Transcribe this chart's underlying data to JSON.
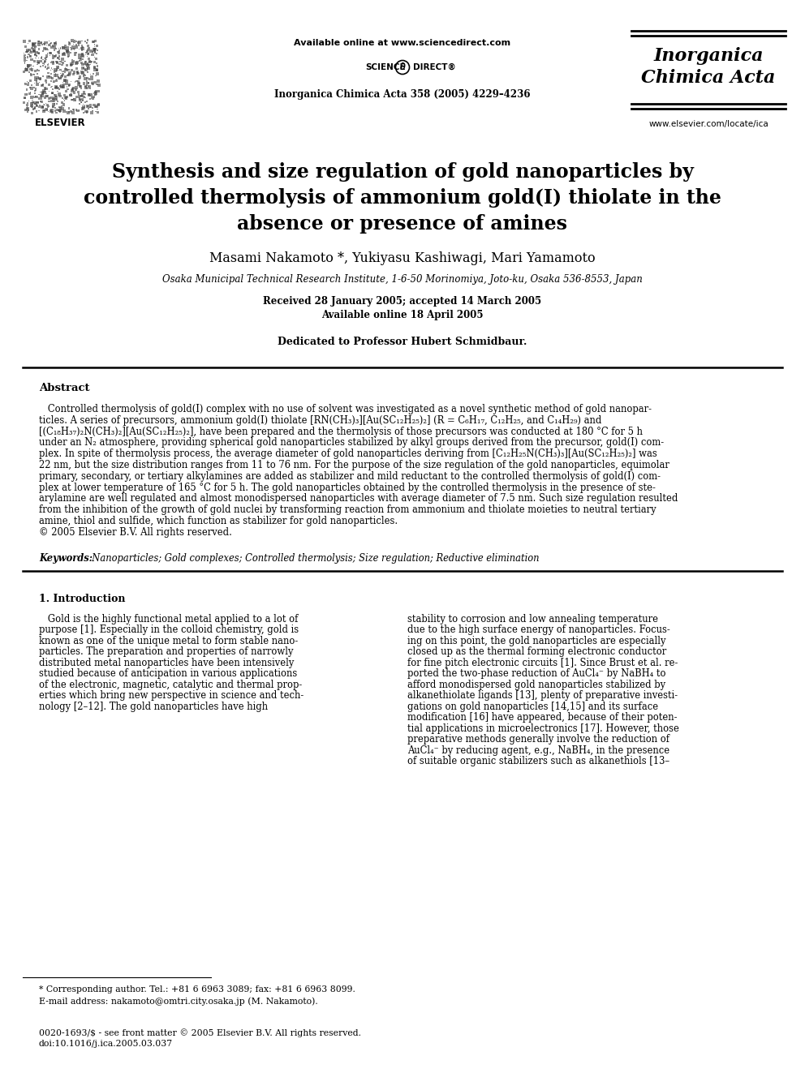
{
  "bg_color": "#ffffff",
  "available_online": "Available online at www.sciencedirect.com",
  "journal_ref": "Inorganica Chimica Acta 358 (2005) 4229–4236",
  "journal_name_line1": "Inorganica",
  "journal_name_line2": "Chimica Acta",
  "website": "www.elsevier.com/locate/ica",
  "title_lines": [
    "Synthesis and size regulation of gold nanoparticles by",
    "controlled thermolysis of ammonium gold(I) thiolate in the",
    "absence or presence of amines"
  ],
  "authors": "Masami Nakamoto *, Yukiyasu Kashiwagi, Mari Yamamoto",
  "affiliation": "Osaka Municipal Technical Research Institute, 1-6-50 Morinomiya, Joto-ku, Osaka 536-8553, Japan",
  "received": "Received 28 January 2005; accepted 14 March 2005",
  "available": "Available online 18 April 2005",
  "dedication": "Dedicated to Professor Hubert Schmidbaur.",
  "abstract_title": "Abstract",
  "abstract_lines": [
    "   Controlled thermolysis of gold(I) complex with no use of solvent was investigated as a novel synthetic method of gold nanopar-",
    "ticles. A series of precursors, ammonium gold(I) thiolate [RN(CH₃)₃][Au(SC₁₂H₂₅)₂] (R = C₆H₁₇, C₁₂H₂₅, and C₁₄H₂₉) and",
    "[(C₁₈H₃₇)₂N(CH₃)₂][Au(SC₁₂H₂₅)₂], have been prepared and the thermolysis of those precursors was conducted at 180 °C for 5 h",
    "under an N₂ atmosphere, providing spherical gold nanoparticles stabilized by alkyl groups derived from the precursor, gold(I) com-",
    "plex. In spite of thermolysis process, the average diameter of gold nanoparticles deriving from [C₁₂H₂₅N(CH₃)₃][Au(SC₁₂H₂₅)₂] was",
    "22 nm, but the size distribution ranges from 11 to 76 nm. For the purpose of the size regulation of the gold nanoparticles, equimolar",
    "primary, secondary, or tertiary alkylamines are added as stabilizer and mild reductant to the controlled thermolysis of gold(I) com-",
    "plex at lower temperature of 165 °C for 5 h. The gold nanoparticles obtained by the controlled thermolysis in the presence of ste-",
    "arylamine are well regulated and almost monodispersed nanoparticles with average diameter of 7.5 nm. Such size regulation resulted",
    "from the inhibition of the growth of gold nuclei by transforming reaction from ammonium and thiolate moieties to neutral tertiary",
    "amine, thiol and sulfide, which function as stabilizer for gold nanoparticles.",
    "© 2005 Elsevier B.V. All rights reserved."
  ],
  "keywords_bold": "Keywords:",
  "keywords_text": "  Nanoparticles; Gold complexes; Controlled thermolysis; Size regulation; Reductive elimination",
  "section1_title": "1. Introduction",
  "col1_lines": [
    "   Gold is the highly functional metal applied to a lot of",
    "purpose [1]. Especially in the colloid chemistry, gold is",
    "known as one of the unique metal to form stable nano-",
    "particles. The preparation and properties of narrowly",
    "distributed metal nanoparticles have been intensively",
    "studied because of anticipation in various applications",
    "of the electronic, magnetic, catalytic and thermal prop-",
    "erties which bring new perspective in science and tech-",
    "nology [2–12]. The gold nanoparticles have high"
  ],
  "col2_lines": [
    "stability to corrosion and low annealing temperature",
    "due to the high surface energy of nanoparticles. Focus-",
    "ing on this point, the gold nanoparticles are especially",
    "closed up as the thermal forming electronic conductor",
    "for fine pitch electronic circuits [1]. Since Brust et al. re-",
    "ported the two-phase reduction of AuCl₄⁻ by NaBH₄ to",
    "afford monodispersed gold nanoparticles stabilized by",
    "alkanethiolate ligands [13], plenty of preparative investi-",
    "gations on gold nanoparticles [14,15] and its surface",
    "modification [16] have appeared, because of their poten-",
    "tial applications in microelectronics [17]. However, those",
    "preparative methods generally involve the reduction of",
    "AuCl₄⁻ by reducing agent, e.g., NaBH₄, in the presence",
    "of suitable organic stabilizers such as alkanethiols [13–"
  ],
  "footnote_line": "* Corresponding author. Tel.: +81 6 6963 3089; fax: +81 6 6963 8099.",
  "footnote_email": "E-mail address: nakamoto@omtri.city.osaka.jp (M. Nakamoto).",
  "footer_issn": "0020-1693/$ - see front matter © 2005 Elsevier B.V. All rights reserved.",
  "footer_doi": "doi:10.1016/j.ica.2005.03.037"
}
